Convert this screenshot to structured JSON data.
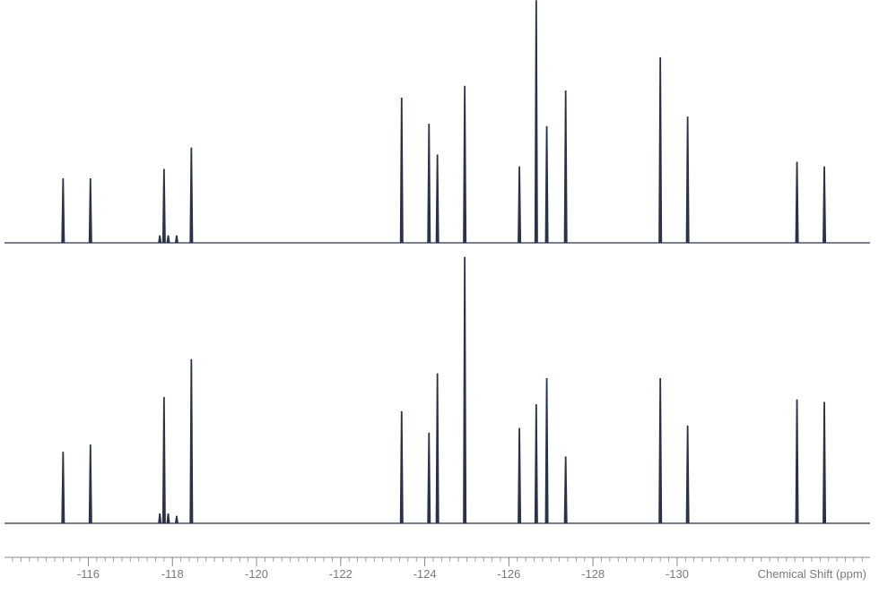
{
  "chart_data": {
    "type": "line",
    "xlabel": "Chemical Shift (ppm)",
    "xlim": [
      -113.9,
      -134.8
    ],
    "x_ticks": [
      -116,
      -118,
      -120,
      -122,
      -124,
      -126,
      -128,
      -130
    ],
    "x_tick_labels": [
      "-116",
      "-118",
      "-120",
      "-122",
      "-124",
      "-126",
      "-128",
      "-130"
    ],
    "minor_tick_step": 0.2,
    "grid": false,
    "line_color": "#2c3347",
    "series": [
      {
        "peaks": [
          {
            "x": -115.4,
            "h": 0.27
          },
          {
            "x": -116.05,
            "h": 0.27
          },
          {
            "x": -117.8,
            "h": 0.31
          },
          {
            "x": -117.7,
            "h": 0.03
          },
          {
            "x": -117.9,
            "h": 0.03
          },
          {
            "x": -118.1,
            "h": 0.03
          },
          {
            "x": -118.45,
            "h": 0.4
          },
          {
            "x": -123.45,
            "h": 0.61
          },
          {
            "x": -124.1,
            "h": 0.5
          },
          {
            "x": -124.3,
            "h": 0.37
          },
          {
            "x": -124.95,
            "h": 0.66
          },
          {
            "x": -126.25,
            "h": 0.32
          },
          {
            "x": -126.65,
            "h": 1.02
          },
          {
            "x": -126.9,
            "h": 0.49
          },
          {
            "x": -127.35,
            "h": 0.64
          },
          {
            "x": -129.6,
            "h": 0.78
          },
          {
            "x": -130.25,
            "h": 0.53
          },
          {
            "x": -132.85,
            "h": 0.34
          },
          {
            "x": -133.5,
            "h": 0.32
          }
        ]
      },
      {
        "peaks": [
          {
            "x": -115.4,
            "h": 0.3
          },
          {
            "x": -116.05,
            "h": 0.33
          },
          {
            "x": -117.8,
            "h": 0.53
          },
          {
            "x": -117.7,
            "h": 0.04
          },
          {
            "x": -117.9,
            "h": 0.04
          },
          {
            "x": -118.1,
            "h": 0.03
          },
          {
            "x": -118.45,
            "h": 0.69
          },
          {
            "x": -123.45,
            "h": 0.47
          },
          {
            "x": -124.1,
            "h": 0.38
          },
          {
            "x": -124.3,
            "h": 0.63
          },
          {
            "x": -124.95,
            "h": 1.12
          },
          {
            "x": -126.25,
            "h": 0.4
          },
          {
            "x": -126.65,
            "h": 0.5
          },
          {
            "x": -126.9,
            "h": 0.61
          },
          {
            "x": -127.35,
            "h": 0.28
          },
          {
            "x": -129.6,
            "h": 0.61
          },
          {
            "x": -130.25,
            "h": 0.41
          },
          {
            "x": -132.85,
            "h": 0.52
          },
          {
            "x": -133.5,
            "h": 0.51
          }
        ]
      }
    ]
  }
}
